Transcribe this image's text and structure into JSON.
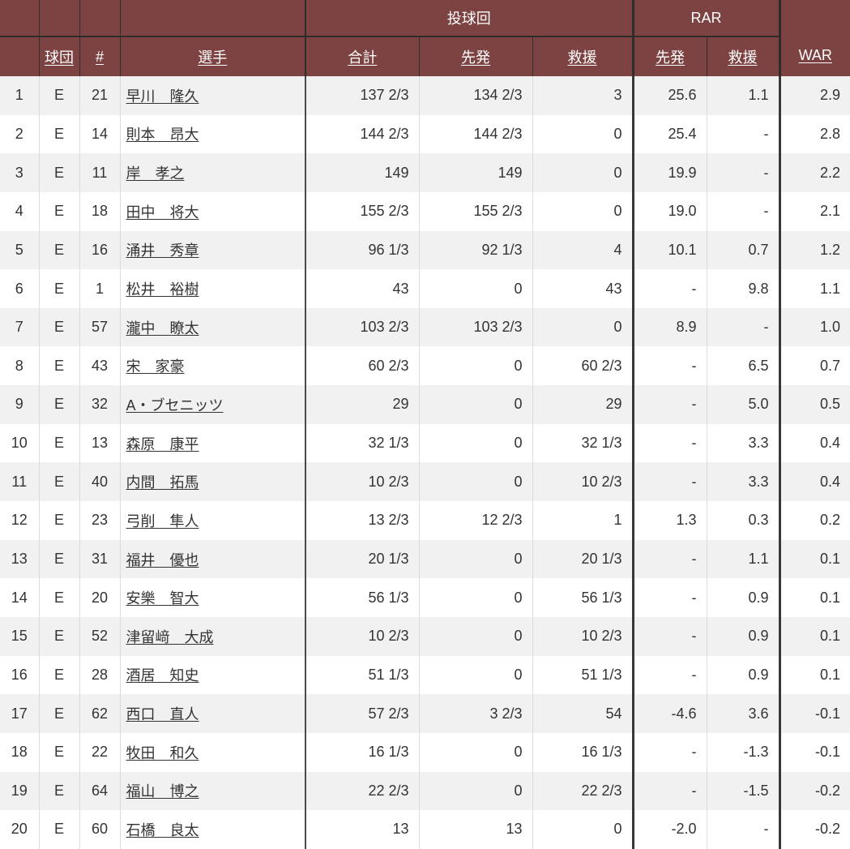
{
  "colors": {
    "header_bg": "#7d4342",
    "header_text": "#ffffff",
    "header_line": "#342d2d",
    "heavy_line": "#2e2b2b",
    "grid_line": "#dcdcdc",
    "row_stripe": "#f1f1f1",
    "row_white": "#ffffff",
    "body_text": "#333333"
  },
  "table": {
    "header": {
      "rank_label": "",
      "team_label": "球団",
      "number_label": "#",
      "player_label": "選手",
      "innings_group_label": "投球回",
      "innings_total_label": "合計",
      "innings_start_label": "先発",
      "innings_relief_label": "救援",
      "rar_group_label": "RAR",
      "rar_start_label": "先発",
      "rar_relief_label": "救援",
      "war_label": "WAR"
    },
    "rows": [
      {
        "rank": "1",
        "team": "E",
        "number": "21",
        "player": "早川　隆久",
        "ip_total": "137 2/3",
        "ip_start": "134 2/3",
        "ip_relief": "3",
        "rar_start": "25.6",
        "rar_relief": "1.1",
        "war": "2.9"
      },
      {
        "rank": "2",
        "team": "E",
        "number": "14",
        "player": "則本　昂大",
        "ip_total": "144 2/3",
        "ip_start": "144 2/3",
        "ip_relief": "0",
        "rar_start": "25.4",
        "rar_relief": "-",
        "war": "2.8"
      },
      {
        "rank": "3",
        "team": "E",
        "number": "11",
        "player": "岸　孝之",
        "ip_total": "149",
        "ip_start": "149",
        "ip_relief": "0",
        "rar_start": "19.9",
        "rar_relief": "-",
        "war": "2.2"
      },
      {
        "rank": "4",
        "team": "E",
        "number": "18",
        "player": "田中　将大",
        "ip_total": "155 2/3",
        "ip_start": "155 2/3",
        "ip_relief": "0",
        "rar_start": "19.0",
        "rar_relief": "-",
        "war": "2.1"
      },
      {
        "rank": "5",
        "team": "E",
        "number": "16",
        "player": "涌井　秀章",
        "ip_total": "96 1/3",
        "ip_start": "92 1/3",
        "ip_relief": "4",
        "rar_start": "10.1",
        "rar_relief": "0.7",
        "war": "1.2"
      },
      {
        "rank": "6",
        "team": "E",
        "number": "1",
        "player": "松井　裕樹",
        "ip_total": "43",
        "ip_start": "0",
        "ip_relief": "43",
        "rar_start": "-",
        "rar_relief": "9.8",
        "war": "1.1"
      },
      {
        "rank": "7",
        "team": "E",
        "number": "57",
        "player": "瀧中　瞭太",
        "ip_total": "103 2/3",
        "ip_start": "103 2/3",
        "ip_relief": "0",
        "rar_start": "8.9",
        "rar_relief": "-",
        "war": "1.0"
      },
      {
        "rank": "8",
        "team": "E",
        "number": "43",
        "player": "宋　家豪",
        "ip_total": "60 2/3",
        "ip_start": "0",
        "ip_relief": "60 2/3",
        "rar_start": "-",
        "rar_relief": "6.5",
        "war": "0.7"
      },
      {
        "rank": "9",
        "team": "E",
        "number": "32",
        "player": "A・ブセニッツ",
        "ip_total": "29",
        "ip_start": "0",
        "ip_relief": "29",
        "rar_start": "-",
        "rar_relief": "5.0",
        "war": "0.5"
      },
      {
        "rank": "10",
        "team": "E",
        "number": "13",
        "player": "森原　康平",
        "ip_total": "32 1/3",
        "ip_start": "0",
        "ip_relief": "32 1/3",
        "rar_start": "-",
        "rar_relief": "3.3",
        "war": "0.4"
      },
      {
        "rank": "11",
        "team": "E",
        "number": "40",
        "player": "内間　拓馬",
        "ip_total": "10 2/3",
        "ip_start": "0",
        "ip_relief": "10 2/3",
        "rar_start": "-",
        "rar_relief": "3.3",
        "war": "0.4"
      },
      {
        "rank": "12",
        "team": "E",
        "number": "23",
        "player": "弓削　隼人",
        "ip_total": "13 2/3",
        "ip_start": "12 2/3",
        "ip_relief": "1",
        "rar_start": "1.3",
        "rar_relief": "0.3",
        "war": "0.2"
      },
      {
        "rank": "13",
        "team": "E",
        "number": "31",
        "player": "福井　優也",
        "ip_total": "20 1/3",
        "ip_start": "0",
        "ip_relief": "20 1/3",
        "rar_start": "-",
        "rar_relief": "1.1",
        "war": "0.1"
      },
      {
        "rank": "14",
        "team": "E",
        "number": "20",
        "player": "安樂　智大",
        "ip_total": "56 1/3",
        "ip_start": "0",
        "ip_relief": "56 1/3",
        "rar_start": "-",
        "rar_relief": "0.9",
        "war": "0.1"
      },
      {
        "rank": "15",
        "team": "E",
        "number": "52",
        "player": "津留﨑　大成",
        "ip_total": "10 2/3",
        "ip_start": "0",
        "ip_relief": "10 2/3",
        "rar_start": "-",
        "rar_relief": "0.9",
        "war": "0.1"
      },
      {
        "rank": "16",
        "team": "E",
        "number": "28",
        "player": "酒居　知史",
        "ip_total": "51 1/3",
        "ip_start": "0",
        "ip_relief": "51 1/3",
        "rar_start": "-",
        "rar_relief": "0.9",
        "war": "0.1"
      },
      {
        "rank": "17",
        "team": "E",
        "number": "62",
        "player": "西口　直人",
        "ip_total": "57 2/3",
        "ip_start": "3 2/3",
        "ip_relief": "54",
        "rar_start": "-4.6",
        "rar_relief": "3.6",
        "war": "-0.1"
      },
      {
        "rank": "18",
        "team": "E",
        "number": "22",
        "player": "牧田　和久",
        "ip_total": "16 1/3",
        "ip_start": "0",
        "ip_relief": "16 1/3",
        "rar_start": "-",
        "rar_relief": "-1.3",
        "war": "-0.1"
      },
      {
        "rank": "19",
        "team": "E",
        "number": "64",
        "player": "福山　博之",
        "ip_total": "22 2/3",
        "ip_start": "0",
        "ip_relief": "22 2/3",
        "rar_start": "-",
        "rar_relief": "-1.5",
        "war": "-0.2"
      },
      {
        "rank": "20",
        "team": "E",
        "number": "60",
        "player": "石橋　良太",
        "ip_total": "13",
        "ip_start": "13",
        "ip_relief": "0",
        "rar_start": "-2.0",
        "rar_relief": "-",
        "war": "-0.2"
      }
    ]
  }
}
